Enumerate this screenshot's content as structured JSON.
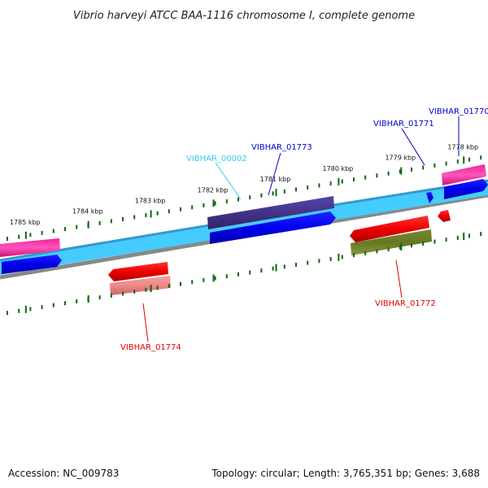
{
  "title": "Vibrio harveyi ATCC BAA-1116 chromosome I, complete genome",
  "footer": {
    "accession": "Accession: NC_009783",
    "summary": "Topology: circular; Length: 3,765,351 bp; Genes: 3,688"
  },
  "ticks": [
    {
      "label": "1785 kbp",
      "value": 1785
    },
    {
      "label": "1784 kbp",
      "value": 1784
    },
    {
      "label": "1783 kbp",
      "value": 1783
    },
    {
      "label": "1782 kbp",
      "value": 1782
    },
    {
      "label": "1781 kbp",
      "value": 1781
    },
    {
      "label": "1780 kbp",
      "value": 1780
    },
    {
      "label": "1779 kbp",
      "value": 1779
    },
    {
      "label": "1778 kbp",
      "value": 1778
    }
  ],
  "gene_labels": [
    {
      "text": "VIBHAR_01770",
      "color": "#0000cc"
    },
    {
      "text": "VIBHAR_01771",
      "color": "#0000cc"
    },
    {
      "text": "VIBHAR_01773",
      "color": "#0000cc"
    },
    {
      "text": "VIBHAR_00002",
      "color": "#33ccee"
    },
    {
      "text": "VIBHAR_01772",
      "color": "#dd0000"
    },
    {
      "text": "VIBHAR_01774",
      "color": "#dd0000"
    }
  ],
  "colors": {
    "backbone_light": "#44ccff",
    "backbone_dark": "#3399cc",
    "outer_ring": "#888888",
    "cds_forward": "#0000ee",
    "cds_reverse": "#ee0000",
    "gene_magenta": "#ee2299",
    "gene_navy": "#443388",
    "gene_olive": "#667722",
    "gene_pink": "#ee8888",
    "tick_color": "#116611"
  }
}
